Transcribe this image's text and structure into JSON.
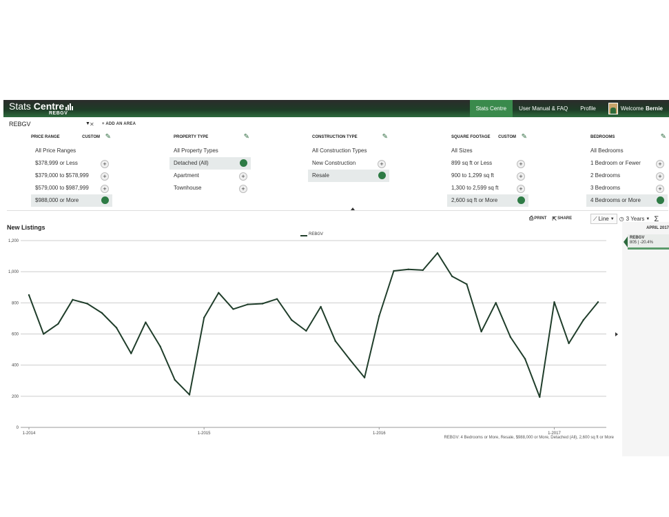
{
  "app": {
    "name_light": "Stats",
    "name_bold": "Centre",
    "sub": "REBGV"
  },
  "nav": {
    "items": [
      "Stats Centre",
      "User Manual & FAQ",
      "Profile"
    ],
    "welcome": "Welcome",
    "user": "Bernie"
  },
  "area": {
    "selected": "REBGV",
    "add_label": "+ ADD AN AREA"
  },
  "filters": [
    {
      "title": "PRICE RANGE",
      "custom": "CUSTOM",
      "options": [
        {
          "label": "All Price Ranges",
          "state": "none"
        },
        {
          "label": "$378,999 or Less",
          "state": "add"
        },
        {
          "label": "$379,000 to $578,999",
          "state": "add"
        },
        {
          "label": "$579,000 to $987,999",
          "state": "add"
        },
        {
          "label": "$988,000 or More",
          "state": "selected"
        }
      ]
    },
    {
      "title": "PROPERTY TYPE",
      "custom": "",
      "options": [
        {
          "label": "All Property Types",
          "state": "none"
        },
        {
          "label": "Detached (All)",
          "state": "selected"
        },
        {
          "label": "Apartment",
          "state": "add"
        },
        {
          "label": "Townhouse",
          "state": "add"
        }
      ]
    },
    {
      "title": "CONSTRUCTION TYPE",
      "custom": "",
      "options": [
        {
          "label": "All Construction Types",
          "state": "none"
        },
        {
          "label": "New Construction",
          "state": "add"
        },
        {
          "label": "Resale",
          "state": "selected"
        }
      ]
    },
    {
      "title": "SQUARE FOOTAGE",
      "custom": "CUSTOM",
      "options": [
        {
          "label": "All Sizes",
          "state": "none"
        },
        {
          "label": "899 sq ft or Less",
          "state": "add"
        },
        {
          "label": "900 to 1,299 sq ft",
          "state": "add"
        },
        {
          "label": "1,300 to 2,599 sq ft",
          "state": "add"
        },
        {
          "label": "2,600 sq ft or More",
          "state": "selected"
        }
      ]
    },
    {
      "title": "BEDROOMS",
      "custom": "",
      "options": [
        {
          "label": "All Bedrooms",
          "state": "none"
        },
        {
          "label": "1 Bedroom or Fewer",
          "state": "add"
        },
        {
          "label": "2 Bedrooms",
          "state": "add"
        },
        {
          "label": "3 Bedrooms",
          "state": "add"
        },
        {
          "label": "4 Bedrooms or More",
          "state": "selected"
        }
      ]
    }
  ],
  "toolbar": {
    "print": "PRINT",
    "share": "SHARE",
    "chart_type": "Line",
    "period": "3 Years",
    "sum_icon": "Σ"
  },
  "side": {
    "date": "APRIL 2017",
    "area": "REBGV",
    "value": "805 | -20.4%"
  },
  "footnote": "REBGV: 4 Bedrooms or More, Resale, $988,000 or More, Detached (All), 2,600 sq ft or More",
  "colors": {
    "brand_dark": "#1e3b26",
    "accent": "#2e7b45",
    "line": "#1f3d2a"
  },
  "chart_data": {
    "type": "line",
    "title": "New Listings",
    "series": [
      {
        "name": "REBGV",
        "values": [
          850,
          600,
          665,
          820,
          795,
          735,
          640,
          475,
          675,
          520,
          305,
          210,
          705,
          865,
          760,
          790,
          795,
          825,
          690,
          620,
          775,
          555,
          435,
          320,
          715,
          1005,
          1015,
          1010,
          1120,
          970,
          920,
          615,
          800,
          580,
          440,
          195,
          805,
          540,
          690,
          805
        ]
      }
    ],
    "x_start": "2014-01",
    "x_ticks": [
      "1-2014",
      "1-2015",
      "1-2016",
      "1-2017"
    ],
    "y_ticks": [
      "0",
      "200",
      "400",
      "600",
      "800",
      "1,000",
      "1,200"
    ],
    "ylim": [
      0,
      1200
    ],
    "grid": true,
    "legend": "top-center"
  }
}
